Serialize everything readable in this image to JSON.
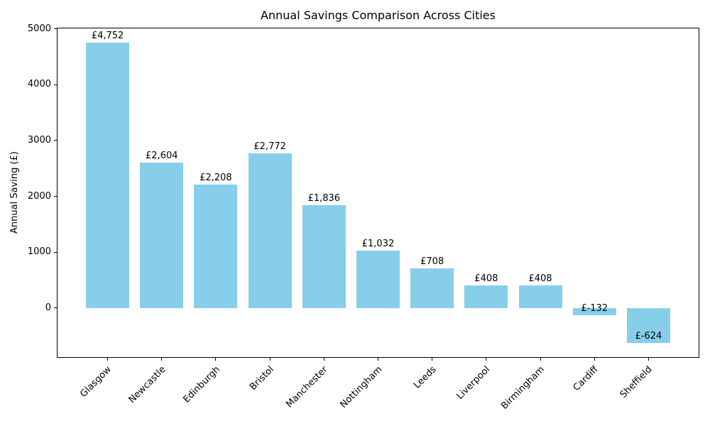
{
  "chart_data": {
    "type": "bar",
    "title": "Annual Savings Comparison Across Cities",
    "ylabel": "Annual Saving (£)",
    "categories": [
      "Glasgow",
      "Newcastle",
      "Edinburgh",
      "Bristol",
      "Manchester",
      "Nottingham",
      "Leeds",
      "Liverpool",
      "Birmingham",
      "Cardiff",
      "Sheffield"
    ],
    "values": [
      4752,
      2604,
      2208,
      2772,
      1836,
      1032,
      708,
      408,
      408,
      -132,
      -624
    ],
    "value_labels": [
      "£4,752",
      "£2,604",
      "£2,208",
      "£2,772",
      "£1,836",
      "£1,032",
      "£708",
      "£408",
      "£408",
      "£-132",
      "£-624"
    ],
    "yticks": [
      0,
      1000,
      2000,
      3000,
      4000,
      5000
    ],
    "ylim": [
      -893,
      5021
    ],
    "bar_width_fraction": 0.8,
    "grid": false,
    "legend_position": "none",
    "bar_color": "#87CEEB",
    "text_color": "#000000",
    "axis_color": "#000000",
    "background_color": "#ffffff"
  }
}
